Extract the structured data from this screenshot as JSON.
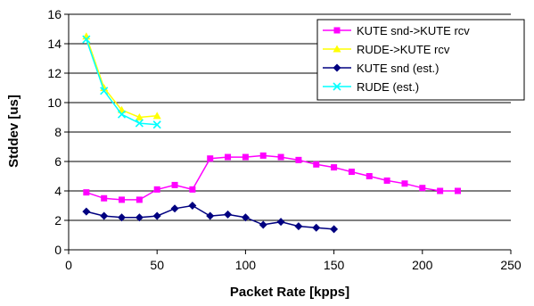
{
  "chart_data": {
    "type": "line",
    "xlabel": "Packet Rate [kpps]",
    "ylabel": "Stddev [us]",
    "xlim": [
      0,
      250
    ],
    "ylim": [
      0,
      16
    ],
    "x_ticks": [
      "0",
      "50",
      "100",
      "150",
      "200",
      "250"
    ],
    "y_ticks": [
      "0",
      "2",
      "4",
      "6",
      "8",
      "10",
      "12",
      "14",
      "16"
    ],
    "grid": "horizontal",
    "legend_position": "top-right",
    "series": [
      {
        "name": "KUTE snd->KUTE rcv",
        "color": "#ff00ff",
        "marker": "square",
        "points": [
          [
            10,
            3.9
          ],
          [
            20,
            3.5
          ],
          [
            30,
            3.4
          ],
          [
            40,
            3.4
          ],
          [
            50,
            4.1
          ],
          [
            60,
            4.4
          ],
          [
            70,
            4.1
          ],
          [
            80,
            6.2
          ],
          [
            90,
            6.3
          ],
          [
            100,
            6.3
          ],
          [
            110,
            6.4
          ],
          [
            120,
            6.3
          ],
          [
            130,
            6.1
          ],
          [
            140,
            5.8
          ],
          [
            150,
            5.6
          ],
          [
            160,
            5.3
          ],
          [
            170,
            5.0
          ],
          [
            180,
            4.7
          ],
          [
            190,
            4.5
          ],
          [
            200,
            4.2
          ],
          [
            210,
            4.0
          ],
          [
            220,
            4.0
          ]
        ]
      },
      {
        "name": "RUDE->KUTE rcv",
        "color": "#ffff00",
        "marker": "triangle",
        "points": [
          [
            10,
            14.5
          ],
          [
            20,
            11.0
          ],
          [
            30,
            9.5
          ],
          [
            40,
            9.0
          ],
          [
            50,
            9.1
          ]
        ]
      },
      {
        "name": "KUTE snd (est.)",
        "color": "#000080",
        "marker": "diamond",
        "points": [
          [
            10,
            2.6
          ],
          [
            20,
            2.3
          ],
          [
            30,
            2.2
          ],
          [
            40,
            2.2
          ],
          [
            50,
            2.3
          ],
          [
            60,
            2.8
          ],
          [
            70,
            3.0
          ],
          [
            80,
            2.3
          ],
          [
            90,
            2.4
          ],
          [
            100,
            2.2
          ],
          [
            110,
            1.7
          ],
          [
            120,
            1.9
          ],
          [
            130,
            1.6
          ],
          [
            140,
            1.5
          ],
          [
            150,
            1.4
          ]
        ]
      },
      {
        "name": "RUDE (est.)",
        "color": "#00ffff",
        "marker": "x",
        "points": [
          [
            10,
            14.3
          ],
          [
            20,
            10.8
          ],
          [
            30,
            9.2
          ],
          [
            40,
            8.6
          ],
          [
            50,
            8.5
          ]
        ]
      }
    ]
  }
}
